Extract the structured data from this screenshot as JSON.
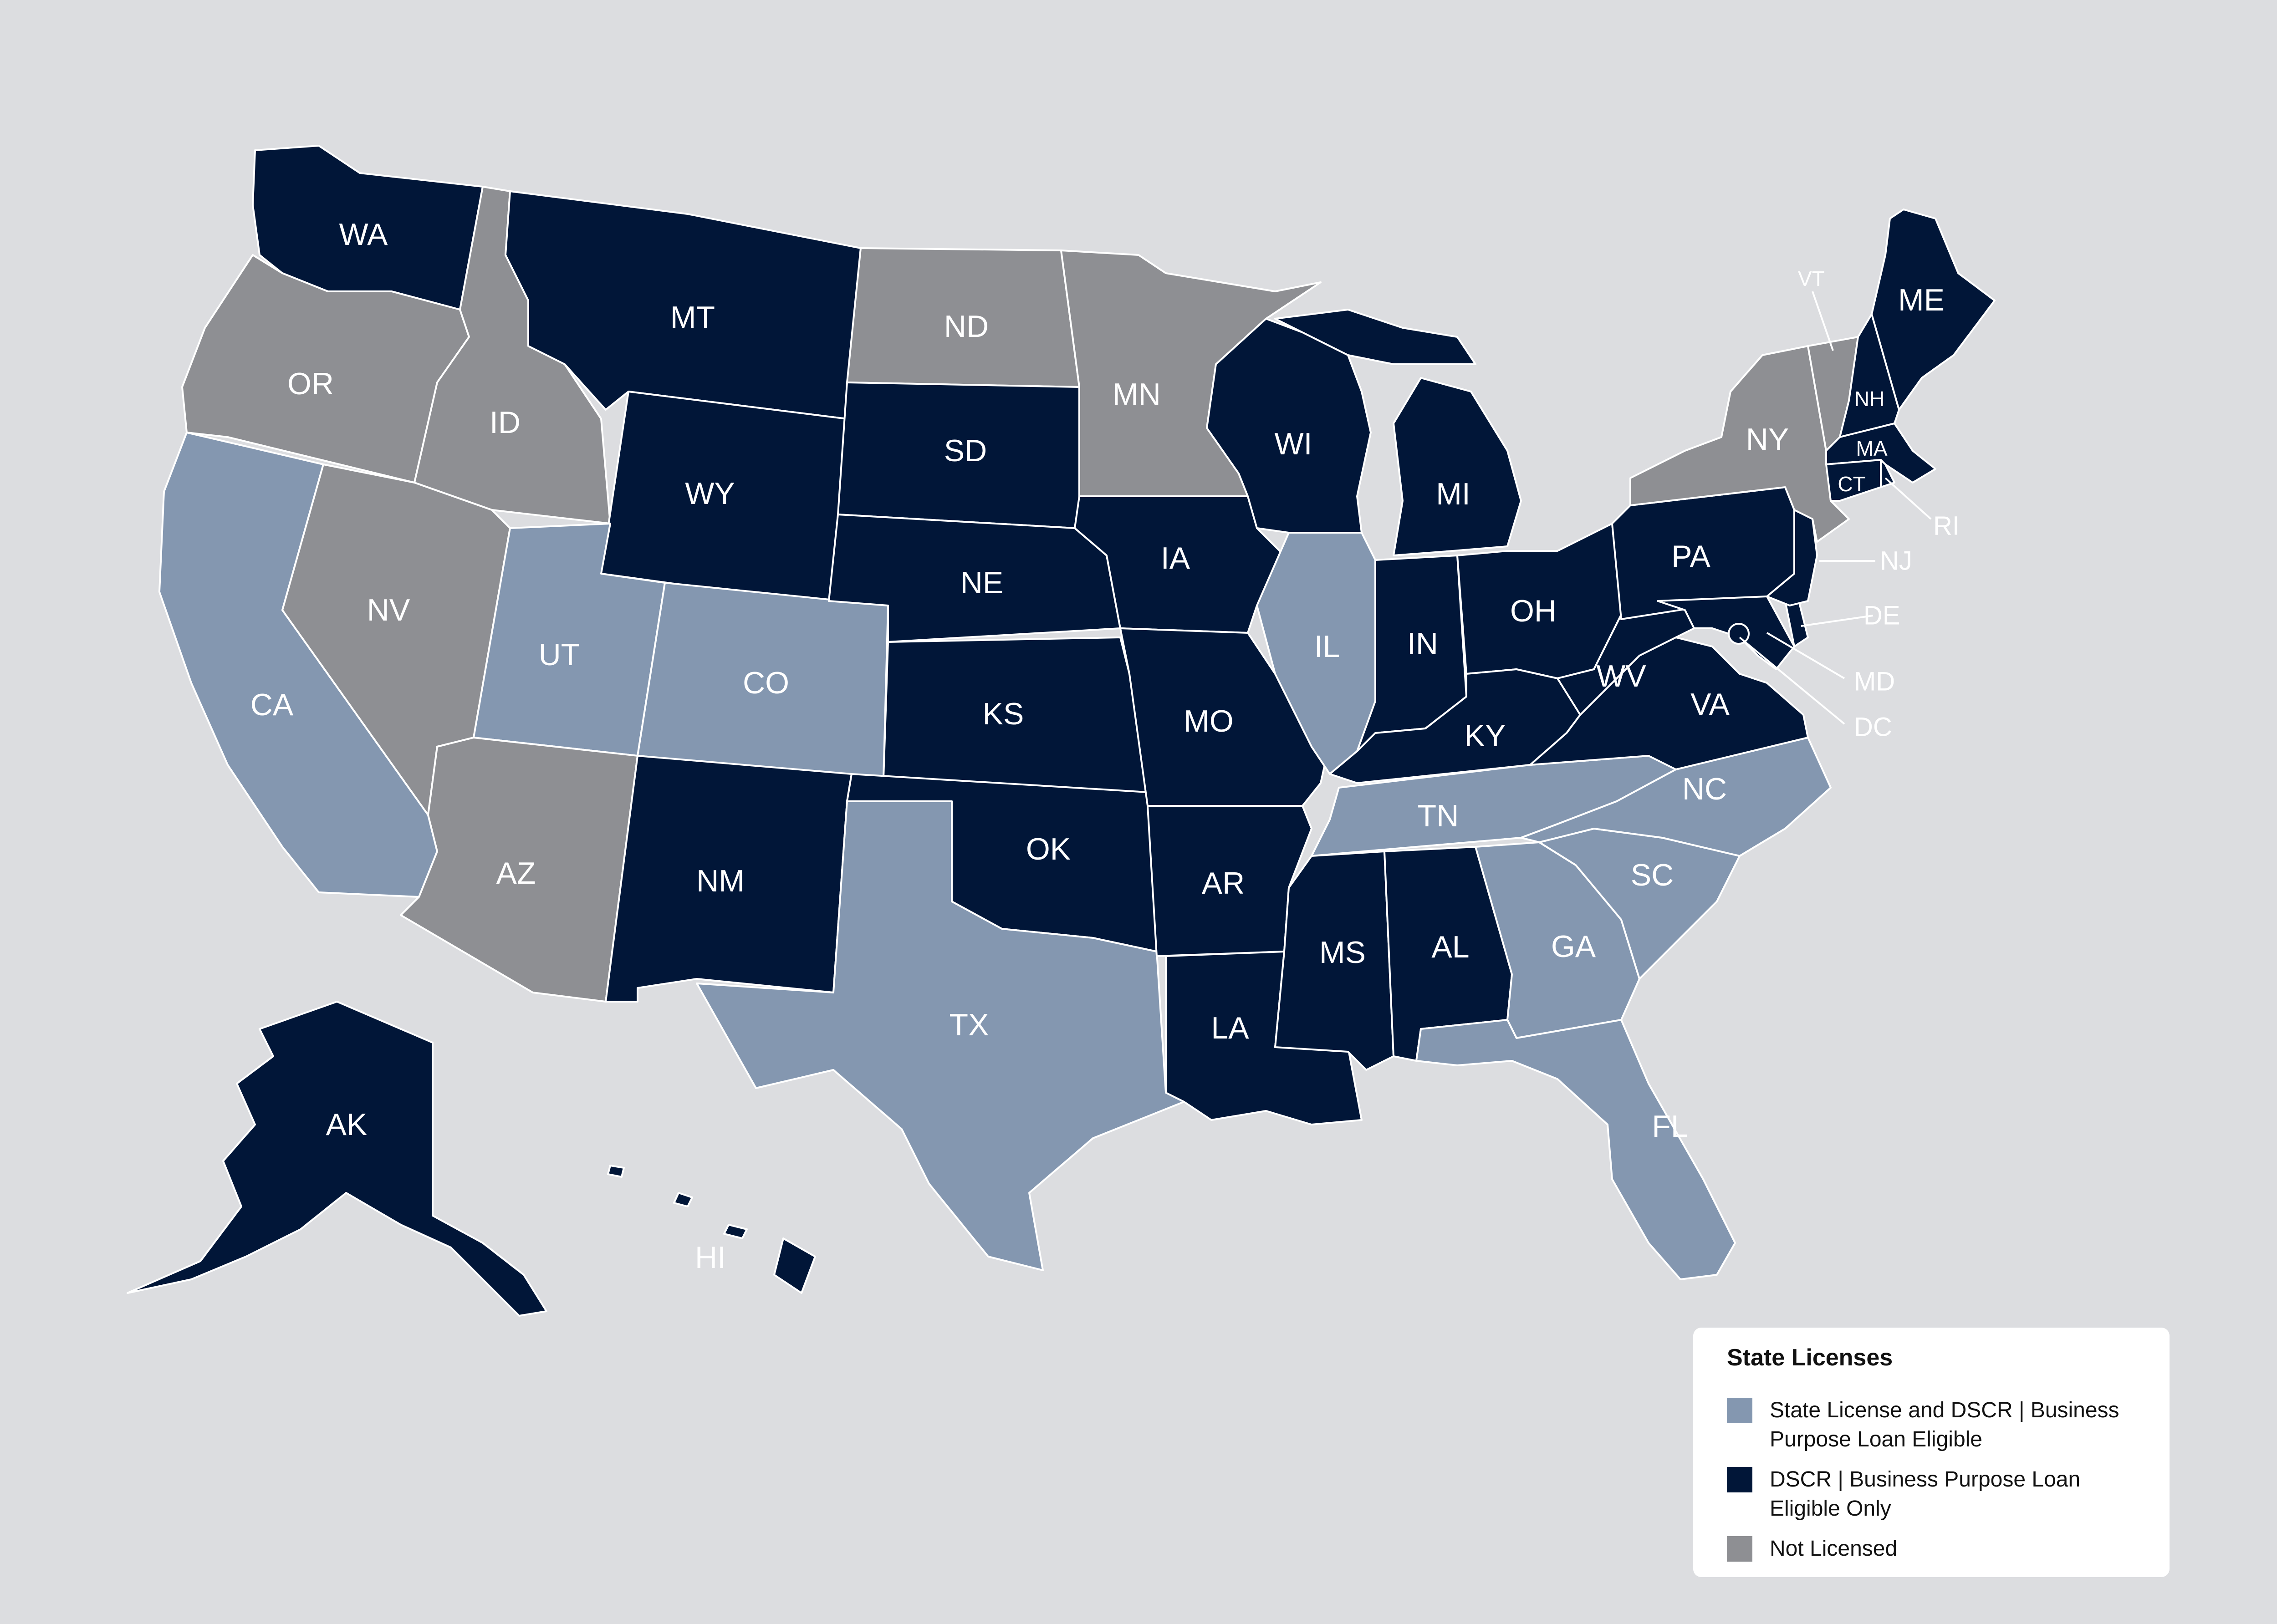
{
  "colors": {
    "background": "#dcdde0",
    "state_license_and_dscr": "#8497b0",
    "dscr_only": "#011638",
    "not_licensed": "#8e8f93"
  },
  "legend": {
    "title": "State Licenses",
    "items": [
      {
        "key": "state_license_and_dscr",
        "label": "State License and DSCR | Business Purpose Loan Eligible"
      },
      {
        "key": "dscr_only",
        "label": "DSCR | Business Purpose Loan Eligible Only"
      },
      {
        "key": "not_licensed",
        "label": "Not Licensed"
      }
    ]
  },
  "states": {
    "WA": {
      "label": "WA",
      "status": "dscr_only"
    },
    "OR": {
      "label": "OR",
      "status": "not_licensed"
    },
    "CA": {
      "label": "CA",
      "status": "state_license_and_dscr"
    },
    "ID": {
      "label": "ID",
      "status": "not_licensed"
    },
    "NV": {
      "label": "NV",
      "status": "not_licensed"
    },
    "MT": {
      "label": "MT",
      "status": "dscr_only"
    },
    "WY": {
      "label": "WY",
      "status": "dscr_only"
    },
    "UT": {
      "label": "UT",
      "status": "state_license_and_dscr"
    },
    "AZ": {
      "label": "AZ",
      "status": "not_licensed"
    },
    "CO": {
      "label": "CO",
      "status": "state_license_and_dscr"
    },
    "NM": {
      "label": "NM",
      "status": "dscr_only"
    },
    "ND": {
      "label": "ND",
      "status": "not_licensed"
    },
    "SD": {
      "label": "SD",
      "status": "dscr_only"
    },
    "NE": {
      "label": "NE",
      "status": "dscr_only"
    },
    "KS": {
      "label": "KS",
      "status": "dscr_only"
    },
    "OK": {
      "label": "OK",
      "status": "dscr_only"
    },
    "TX": {
      "label": "TX",
      "status": "state_license_and_dscr"
    },
    "MN": {
      "label": "MN",
      "status": "not_licensed"
    },
    "IA": {
      "label": "IA",
      "status": "dscr_only"
    },
    "MO": {
      "label": "MO",
      "status": "dscr_only"
    },
    "AR": {
      "label": "AR",
      "status": "dscr_only"
    },
    "LA": {
      "label": "LA",
      "status": "dscr_only"
    },
    "WI": {
      "label": "WI",
      "status": "dscr_only"
    },
    "IL": {
      "label": "IL",
      "status": "state_license_and_dscr"
    },
    "MI": {
      "label": "MI",
      "status": "dscr_only"
    },
    "IN": {
      "label": "IN",
      "status": "dscr_only"
    },
    "OH": {
      "label": "OH",
      "status": "dscr_only"
    },
    "KY": {
      "label": "KY",
      "status": "dscr_only"
    },
    "TN": {
      "label": "TN",
      "status": "state_license_and_dscr"
    },
    "MS": {
      "label": "MS",
      "status": "dscr_only"
    },
    "AL": {
      "label": "AL",
      "status": "dscr_only"
    },
    "GA": {
      "label": "GA",
      "status": "state_license_and_dscr"
    },
    "FL": {
      "label": "FL",
      "status": "state_license_and_dscr"
    },
    "SC": {
      "label": "SC",
      "status": "state_license_and_dscr"
    },
    "NC": {
      "label": "NC",
      "status": "state_license_and_dscr"
    },
    "VA": {
      "label": "VA",
      "status": "dscr_only"
    },
    "WV": {
      "label": "WV",
      "status": "dscr_only"
    },
    "PA": {
      "label": "PA",
      "status": "dscr_only"
    },
    "NY": {
      "label": "NY",
      "status": "not_licensed"
    },
    "VT": {
      "label": "VT",
      "status": "not_licensed"
    },
    "NH": {
      "label": "NH",
      "status": "dscr_only"
    },
    "ME": {
      "label": "ME",
      "status": "dscr_only"
    },
    "MA": {
      "label": "MA",
      "status": "dscr_only"
    },
    "RI": {
      "label": "RI",
      "status": "dscr_only"
    },
    "CT": {
      "label": "CT",
      "status": "dscr_only"
    },
    "NJ": {
      "label": "NJ",
      "status": "dscr_only"
    },
    "DE": {
      "label": "DE",
      "status": "dscr_only"
    },
    "MD": {
      "label": "MD",
      "status": "dscr_only"
    },
    "DC": {
      "label": "DC",
      "status": "dscr_only"
    },
    "AK": {
      "label": "AK",
      "status": "dscr_only"
    },
    "HI": {
      "label": "HI",
      "status": "dscr_only"
    }
  }
}
